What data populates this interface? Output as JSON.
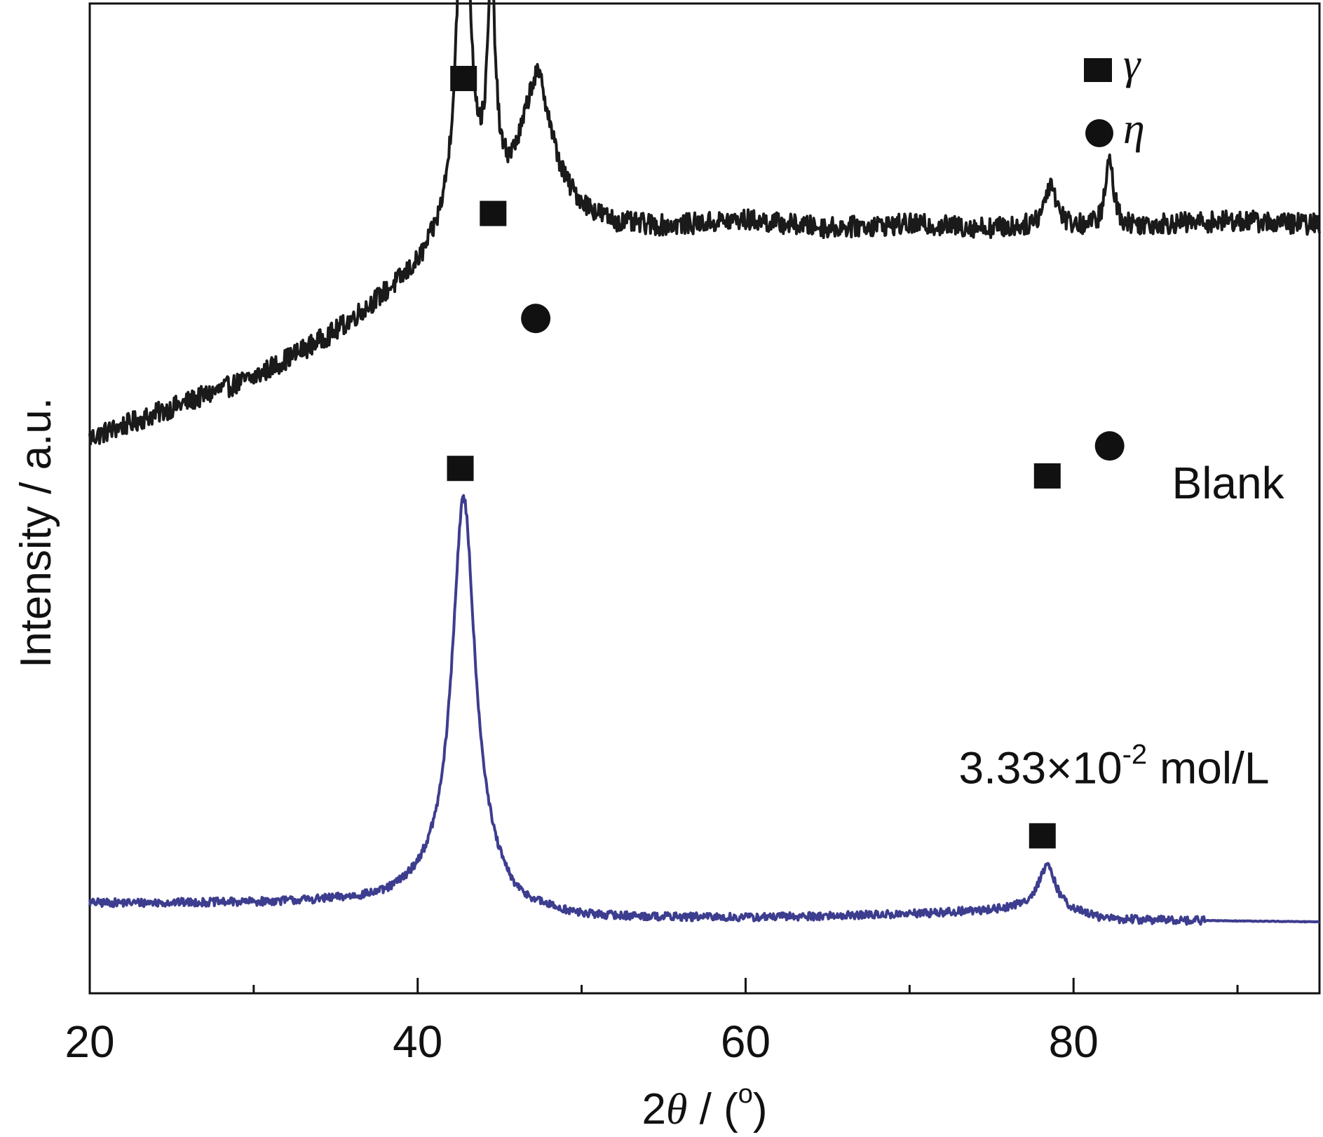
{
  "chart_data": {
    "type": "line",
    "title": "",
    "xlabel_prefix": "2",
    "xlabel_symbol": "θ",
    "xlabel_suffix": " / (",
    "xlabel_degree": "o",
    "xlabel_close": ")",
    "ylabel": "Intensity / a.u.",
    "xlim": [
      20,
      95
    ],
    "x_major_ticks": [
      20,
      40,
      60,
      80
    ],
    "x_minor_ticks": [
      30,
      50,
      70,
      90
    ],
    "grid": false,
    "legend": {
      "placement": "top-right",
      "entries": [
        {
          "marker": "square",
          "symbol": "γ"
        },
        {
          "marker": "circle",
          "symbol": "η"
        }
      ]
    },
    "series": [
      {
        "name": "Blank",
        "color": "#1a1a1a",
        "noise": 1.4,
        "baseline": [
          [
            20,
            0
          ],
          [
            25,
            4
          ],
          [
            30,
            8
          ],
          [
            35,
            14
          ],
          [
            40,
            22
          ],
          [
            42,
            27
          ],
          [
            46,
            30
          ],
          [
            50,
            29
          ],
          [
            52,
            28
          ],
          [
            55,
            28
          ],
          [
            60,
            29
          ],
          [
            65,
            28
          ],
          [
            70,
            28.5
          ],
          [
            75,
            28
          ],
          [
            78,
            28
          ],
          [
            82,
            28
          ],
          [
            85,
            28.5
          ],
          [
            90,
            29
          ],
          [
            95,
            28.5
          ]
        ],
        "peaks": [
          {
            "center": 42.8,
            "height": 52,
            "width": 0.45
          },
          {
            "center": 44.5,
            "height": 28,
            "width": 0.3
          },
          {
            "center": 47.3,
            "height": 18,
            "width": 1.1
          },
          {
            "center": 78.6,
            "height": 6,
            "width": 0.45
          },
          {
            "center": 82.2,
            "height": 9,
            "width": 0.3
          }
        ],
        "markers": [
          {
            "x": 42.8,
            "y": 110,
            "shape": "square"
          },
          {
            "x": 44.6,
            "y": 92,
            "shape": "square"
          },
          {
            "x": 47.2,
            "y": 78,
            "shape": "circle"
          },
          {
            "x": 78.4,
            "y": 57,
            "shape": "square"
          },
          {
            "x": 82.2,
            "y": 61,
            "shape": "circle"
          }
        ],
        "label": "Blank",
        "label_x": 86,
        "label_y": 54
      },
      {
        "name": "3.33×10-2 mol/L",
        "color": "#3d3d8f",
        "noise": 0.55,
        "noise_until": 88,
        "baseline": [
          [
            20,
            0
          ],
          [
            30,
            0
          ],
          [
            38,
            0.3
          ],
          [
            41,
            2
          ],
          [
            44,
            2
          ],
          [
            46,
            -1
          ],
          [
            50,
            -2
          ],
          [
            60,
            -2
          ],
          [
            70,
            -1.5
          ],
          [
            75,
            -1
          ],
          [
            78,
            -0.5
          ],
          [
            82,
            -2.2
          ],
          [
            95,
            -2.5
          ]
        ],
        "peaks": [
          {
            "center": 42.8,
            "height": 52,
            "width": 0.85
          },
          {
            "center": 78.4,
            "height": 5.5,
            "width": 0.65
          }
        ],
        "markers": [
          {
            "x": 42.6,
            "y": 58,
            "shape": "square"
          },
          {
            "x": 78.1,
            "y": 9,
            "shape": "square"
          }
        ],
        "label_main": "3.33×10",
        "label_sup": "-2",
        "label_unit": " mol/L",
        "label_x": 73,
        "label_y": 16
      }
    ]
  }
}
